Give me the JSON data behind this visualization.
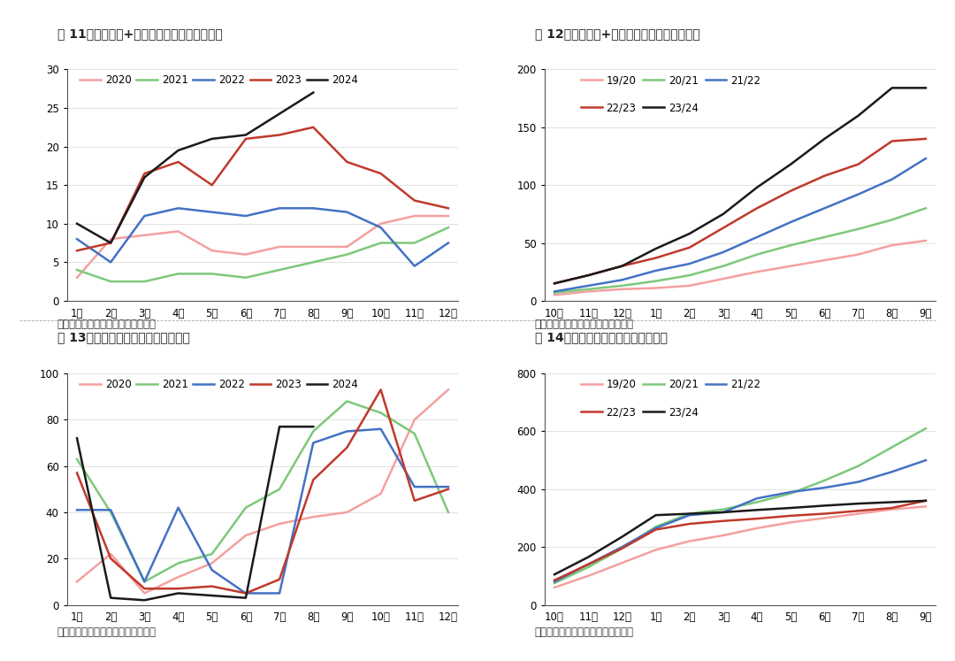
{
  "fig11": {
    "title": "图 11：我国糖浆+预拌粉月度进口量（万吨）",
    "xlabel_ticks": [
      "1月",
      "2月",
      "3月",
      "4月",
      "5月",
      "6月",
      "7月",
      "8月",
      "9月",
      "10月",
      "11月",
      "12月"
    ],
    "ylim": [
      0,
      30
    ],
    "yticks": [
      0,
      5,
      10,
      15,
      20,
      25,
      30
    ],
    "series": {
      "2020": {
        "color": "#F4A0A0",
        "data": [
          3,
          8,
          8.5,
          9,
          6.5,
          6,
          7,
          7,
          7,
          10,
          11,
          11
        ]
      },
      "2021": {
        "color": "#7DC87A",
        "data": [
          4,
          2.5,
          2.5,
          3.5,
          3.5,
          3,
          4,
          5,
          6,
          7.5,
          7.5,
          9.5
        ]
      },
      "2022": {
        "color": "#4472C4",
        "data": [
          8,
          5,
          11,
          12,
          11.5,
          11,
          12,
          12,
          11.5,
          9.5,
          4.5,
          7.5
        ]
      },
      "2023": {
        "color": "#C0392B",
        "data": [
          6.5,
          7.5,
          16.5,
          18,
          15,
          21,
          21.5,
          22.5,
          18,
          16.5,
          13,
          12
        ]
      },
      "2024": {
        "color": "#1A1A1A",
        "data": [
          10,
          7.5,
          16,
          19.5,
          21,
          21.5,
          null,
          27,
          null,
          null,
          null,
          null
        ]
      }
    },
    "legend_order": [
      "2020",
      "2021",
      "2022",
      "2023",
      "2024"
    ]
  },
  "fig12": {
    "title": "图 12：我国糖浆+预拌粉累计进口量（万吨）",
    "xlabel_ticks": [
      "10月",
      "11月",
      "12月",
      "1月",
      "2月",
      "3月",
      "4月",
      "5月",
      "6月",
      "7月",
      "8月",
      "9月"
    ],
    "ylim": [
      0,
      200
    ],
    "yticks": [
      0,
      50,
      100,
      150,
      200
    ],
    "series": {
      "19/20": {
        "color": "#F4A0A0",
        "data": [
          5,
          8,
          10,
          11,
          13,
          19,
          25,
          30,
          35,
          40,
          48,
          52
        ]
      },
      "20/21": {
        "color": "#7DC87A",
        "data": [
          7,
          10,
          13,
          17,
          22,
          30,
          40,
          48,
          55,
          62,
          70,
          80
        ]
      },
      "21/22": {
        "color": "#4472C4",
        "data": [
          8,
          13,
          18,
          26,
          32,
          42,
          55,
          68,
          80,
          92,
          105,
          123
        ]
      },
      "22/23": {
        "color": "#C0392B",
        "data": [
          15,
          22,
          30,
          37,
          46,
          63,
          80,
          95,
          108,
          118,
          138,
          140
        ]
      },
      "23/24": {
        "color": "#1A1A1A",
        "data": [
          15,
          22,
          30,
          45,
          58,
          75,
          98,
          118,
          140,
          160,
          184,
          184
        ]
      }
    },
    "legend_order": [
      "19/20",
      "20/21",
      "21/22",
      "22/23",
      "23/24"
    ]
  },
  "fig13": {
    "title": "图 13：我国食糖月度进口量（万吨）",
    "xlabel_ticks": [
      "1月",
      "2月",
      "3月",
      "4月",
      "5月",
      "6月",
      "7月",
      "8月",
      "9月",
      "10月",
      "11月",
      "12月"
    ],
    "ylim": [
      0,
      100
    ],
    "yticks": [
      0,
      20,
      40,
      60,
      80,
      100
    ],
    "series": {
      "2020": {
        "color": "#F4A0A0",
        "data": [
          10,
          22,
          5,
          12,
          18,
          30,
          35,
          38,
          40,
          48,
          80,
          93
        ]
      },
      "2021": {
        "color": "#7DC87A",
        "data": [
          63,
          40,
          10,
          18,
          22,
          42,
          50,
          75,
          88,
          83,
          74,
          40
        ]
      },
      "2022": {
        "color": "#4472C4",
        "data": [
          41,
          41,
          10,
          42,
          15,
          5,
          5,
          70,
          75,
          76,
          51,
          51
        ]
      },
      "2023": {
        "color": "#C0392B",
        "data": [
          57,
          20,
          7,
          7,
          8,
          5,
          11,
          54,
          68,
          93,
          45,
          50
        ]
      },
      "2024": {
        "color": "#1A1A1A",
        "data": [
          72,
          3,
          2,
          5,
          4,
          3,
          77,
          77,
          null,
          null,
          null,
          null
        ]
      }
    },
    "legend_order": [
      "2020",
      "2021",
      "2022",
      "2023",
      "2024"
    ]
  },
  "fig14": {
    "title": "图 14：我国食糖累计进口量（万吨）",
    "xlabel_ticks": [
      "10月",
      "11月",
      "12月",
      "1月",
      "2月",
      "3月",
      "4月",
      "5月",
      "6月",
      "7月",
      "8月",
      "9月"
    ],
    "ylim": [
      0,
      800
    ],
    "yticks": [
      0,
      200,
      400,
      600,
      800
    ],
    "series": {
      "19/20": {
        "color": "#F4A0A0",
        "data": [
          60,
          100,
          145,
          190,
          220,
          240,
          265,
          285,
          300,
          315,
          330,
          340
        ]
      },
      "20/21": {
        "color": "#7DC87A",
        "data": [
          75,
          130,
          195,
          270,
          315,
          330,
          355,
          385,
          430,
          480,
          545,
          610
        ]
      },
      "21/22": {
        "color": "#4472C4",
        "data": [
          80,
          140,
          200,
          265,
          310,
          320,
          368,
          390,
          405,
          425,
          460,
          500
        ]
      },
      "22/23": {
        "color": "#C0392B",
        "data": [
          85,
          140,
          195,
          260,
          280,
          290,
          298,
          308,
          315,
          325,
          335,
          360
        ]
      },
      "23/24": {
        "color": "#1A1A1A",
        "data": [
          105,
          165,
          235,
          310,
          315,
          320,
          328,
          335,
          343,
          350,
          355,
          360
        ]
      }
    },
    "legend_order": [
      "19/20",
      "20/21",
      "21/22",
      "22/23",
      "23/24"
    ]
  },
  "source_text": "数据来源：海关、五矿期货研究中心",
  "background_color": "#FFFFFF",
  "line_width": 1.8
}
